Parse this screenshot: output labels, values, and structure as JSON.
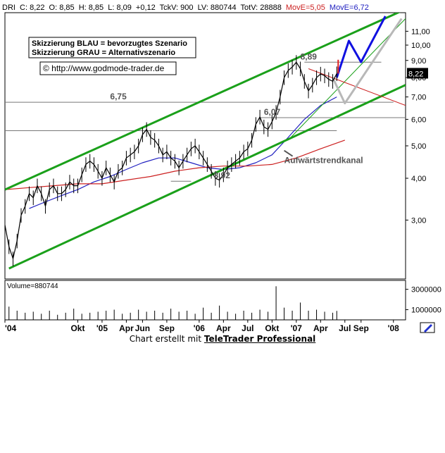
{
  "header": {
    "symbol": "DRI",
    "close": "C: 8,22",
    "open": "O: 8,85",
    "high": "H: 8,85",
    "low": "L: 8,09",
    "change": "+0,12",
    "tick_volume": "TckV: 900",
    "last_volume": "LV: 880744",
    "total_volume": "TotV: 28888",
    "move_red": "MovE=5,05",
    "move_blue": "MovE=6,72"
  },
  "legend": {
    "line1": "Skizzierung BLAU = bevorzugtes Szenario",
    "line2": "Skizzierung GRAU = Alternativszenario",
    "url": "© http://www.godmode-trader.de"
  },
  "colors": {
    "channel": "#1aa01a",
    "blue_scenario": "#1010e0",
    "grey_scenario": "#b8b8b8",
    "ma_red": "#cc2020",
    "ma_blue": "#2020c0",
    "price": "#000000"
  },
  "chart_data": {
    "type": "line",
    "scale": "log",
    "ylim": [
      2.0,
      12.5
    ],
    "y_ticks": [
      "11,00",
      "10,00",
      "9,00",
      "8,00",
      "7,00",
      "6,00",
      "5,00",
      "4,00",
      "3,00"
    ],
    "y_tick_values": [
      11,
      10,
      9,
      8,
      7,
      6,
      5,
      4,
      3
    ],
    "x_ticks": [
      "'04",
      "Okt",
      "'05",
      "Apr",
      "Jun",
      "Sep",
      "'06",
      "Apr",
      "Jul",
      "Okt",
      "'07",
      "Apr",
      "Jul",
      "Sep",
      "'08"
    ],
    "x_tick_months": [
      0,
      9,
      12,
      15,
      17,
      20,
      24,
      27,
      30,
      33,
      36,
      39,
      42,
      44,
      48
    ],
    "xlim_months": [
      0,
      49.5
    ],
    "last_price_label": "8,22",
    "last_price": 8.22,
    "annotations": [
      {
        "text": "6,75",
        "month": 13,
        "value": 6.75
      },
      {
        "text": "6,07",
        "month": 32,
        "value": 6.07
      },
      {
        "text": "3,92",
        "month": 25.8,
        "value": 3.92
      },
      {
        "text": "8,89",
        "month": 36.5,
        "value": 8.89
      },
      {
        "text": "Aufwärtstrendkanal",
        "month": 34.5,
        "value": 4.35
      }
    ],
    "horizontal_levels": [
      {
        "value": 6.75,
        "from_month": 0,
        "to_month": 48
      },
      {
        "value": 6.07,
        "from_month": 31.5,
        "to_month": 49.5
      },
      {
        "value": 5.55,
        "from_month": 0,
        "to_month": 41
      },
      {
        "value": 8.89,
        "from_month": 37,
        "to_month": 46.5
      },
      {
        "value": 3.92,
        "from_month": 20.5,
        "to_month": 23
      }
    ],
    "series": [
      {
        "key": "price",
        "months": [
          0,
          0.5,
          1,
          1.5,
          2,
          2.5,
          3,
          3.5,
          4,
          4.5,
          5,
          5.5,
          6,
          6.5,
          7,
          7.5,
          8,
          8.5,
          9,
          9.5,
          10,
          10.5,
          11,
          11.5,
          12,
          12.5,
          13,
          13.5,
          14,
          14.5,
          15,
          15.5,
          16,
          16.5,
          17,
          17.5,
          18,
          18.5,
          19,
          19.5,
          20,
          20.5,
          21,
          21.5,
          22,
          22.5,
          23,
          23.5,
          24,
          24.5,
          25,
          25.5,
          26,
          26.5,
          27,
          27.5,
          28,
          28.5,
          29,
          29.5,
          30,
          30.5,
          31,
          31.5,
          32,
          32.5,
          33,
          33.5,
          34,
          34.5,
          35,
          35.5,
          36,
          36.5,
          37,
          37.5,
          38,
          38.5,
          39,
          39.5,
          40,
          40.5,
          41
        ],
        "values": [
          2.9,
          2.5,
          2.3,
          2.6,
          3.1,
          3.3,
          3.6,
          3.5,
          3.8,
          3.6,
          3.3,
          3.7,
          3.8,
          3.6,
          3.6,
          3.7,
          3.9,
          3.8,
          3.8,
          4.1,
          4.4,
          4.5,
          4.4,
          4.2,
          4.0,
          4.3,
          4.1,
          3.9,
          4.2,
          4.3,
          4.6,
          4.7,
          4.8,
          5.0,
          5.4,
          5.6,
          5.3,
          5.2,
          5.0,
          4.7,
          4.8,
          4.6,
          4.5,
          4.3,
          4.5,
          4.7,
          4.9,
          5.0,
          4.8,
          4.6,
          4.4,
          4.2,
          4.0,
          3.95,
          4.1,
          4.3,
          4.4,
          4.5,
          4.6,
          4.8,
          4.9,
          5.2,
          5.8,
          6.1,
          5.7,
          5.6,
          5.9,
          6.3,
          7.0,
          8.0,
          8.4,
          8.6,
          8.89,
          8.5,
          7.8,
          7.3,
          7.6,
          8.0,
          8.2,
          8.1,
          7.9,
          7.8,
          8.22
        ]
      },
      {
        "key": "ma_blue",
        "months": [
          3,
          5,
          7,
          9,
          11,
          13,
          15,
          17,
          19,
          21,
          23,
          25,
          27,
          29,
          31,
          33,
          35,
          37,
          39,
          41
        ],
        "values": [
          3.25,
          3.4,
          3.55,
          3.7,
          3.9,
          4.05,
          4.25,
          4.45,
          4.6,
          4.6,
          4.45,
          4.3,
          4.25,
          4.3,
          4.45,
          4.7,
          5.3,
          6.0,
          6.6,
          7.0
        ]
      },
      {
        "key": "ma_red",
        "months": [
          0,
          3,
          6,
          9,
          12,
          15,
          18,
          21,
          24,
          27,
          30,
          33,
          36,
          39,
          42
        ],
        "values": [
          3.7,
          3.75,
          3.8,
          3.85,
          3.85,
          3.95,
          4.05,
          4.2,
          4.3,
          4.35,
          4.35,
          4.4,
          4.6,
          4.9,
          5.2
        ]
      },
      {
        "key": "channel_upper",
        "months": [
          0,
          49.5
        ],
        "values": [
          3.7,
          12.8
        ]
      },
      {
        "key": "channel_lower",
        "months": [
          0.5,
          49.5
        ],
        "values": [
          2.15,
          7.6
        ]
      },
      {
        "key": "channel_inner",
        "months": [
          35,
          49.5
        ],
        "values": [
          5.2,
          12.0
        ]
      },
      {
        "key": "resistance_red",
        "months": [
          37.5,
          49.5
        ],
        "values": [
          8.5,
          6.6
        ]
      },
      {
        "key": "blue_scenario",
        "months": [
          41,
          42.5,
          44,
          47
        ],
        "values": [
          8.0,
          10.3,
          8.9,
          12.2
        ]
      },
      {
        "key": "grey_scenario",
        "months": [
          40.5,
          42,
          49
        ],
        "values": [
          8.0,
          6.7,
          12.0
        ]
      }
    ],
    "volume": {
      "label": "Volume=880744",
      "y_ticks": [
        "3000000",
        "1000000"
      ],
      "y_tick_values": [
        3000000,
        1000000
      ],
      "ymax": 3600000,
      "months": [
        0.5,
        1.5,
        2.5,
        3.5,
        4.5,
        5.5,
        6.5,
        7.5,
        8.5,
        9.5,
        10.5,
        11.5,
        12.5,
        13.5,
        14.5,
        15.5,
        16.5,
        17.5,
        18.5,
        19.5,
        20.5,
        21.5,
        22.5,
        23.5,
        24.5,
        25.5,
        26.5,
        27.5,
        28.5,
        29.5,
        30.5,
        31.5,
        32.5,
        33.5,
        34.5,
        35.5,
        36.5,
        37.5,
        38.5,
        39.5,
        40.5,
        41
      ],
      "values": [
        1300000,
        900000,
        700000,
        800000,
        600000,
        900000,
        500000,
        700000,
        1100000,
        600000,
        700000,
        800000,
        900000,
        1000000,
        600000,
        700000,
        1000000,
        800000,
        900000,
        700000,
        1100000,
        800000,
        900000,
        600000,
        1200000,
        700000,
        1400000,
        800000,
        600000,
        900000,
        700000,
        1000000,
        800000,
        3300000,
        1200000,
        900000,
        1700000,
        900000,
        1000000,
        800000,
        700000,
        880744
      ]
    }
  },
  "footer": {
    "prefix": "Chart erstellt mit",
    "brand": "TeleTrader Professional"
  }
}
